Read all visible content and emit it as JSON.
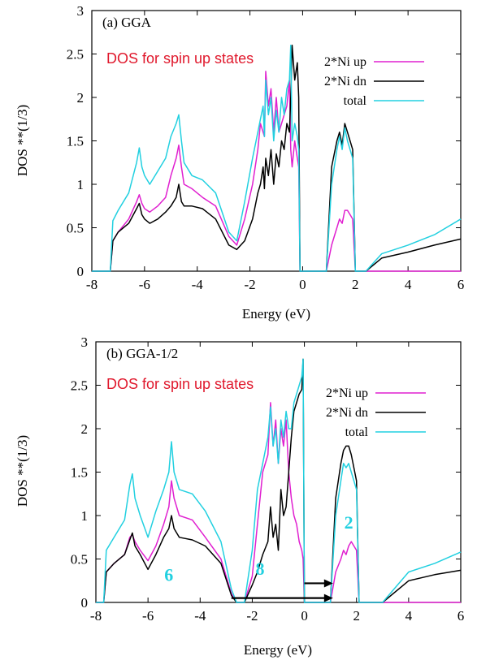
{
  "chart_data": [
    {
      "type": "line",
      "title": "(a) GGA",
      "annotation": "DOS for spin up states",
      "annotation_color": "#e0182c",
      "xlabel": "Energy (eV)",
      "ylabel": "DOS **(1/3)",
      "xlim": [
        -8,
        6
      ],
      "ylim": [
        0,
        3
      ],
      "xticks": [
        "-8",
        "-6",
        "-4",
        "-2",
        "0",
        "2",
        "4",
        "6"
      ],
      "yticks": [
        "0",
        "0.5",
        "1",
        "1.5",
        "2",
        "2.5",
        "3"
      ],
      "legend_position": "top-right",
      "grid": false,
      "series": [
        {
          "name": "2*Ni up",
          "color": "#e020d0",
          "x": [
            -8,
            -7.3,
            -7.2,
            -7,
            -6.6,
            -6.3,
            -6.2,
            -6.1,
            -6.0,
            -5.8,
            -5.5,
            -5.2,
            -5.0,
            -4.8,
            -4.7,
            -4.6,
            -4.5,
            -4.2,
            -3.8,
            -3.3,
            -2.8,
            -2.5,
            -2.2,
            -1.9,
            -1.7,
            -1.6,
            -1.5,
            -1.45,
            -1.4,
            -1.3,
            -1.2,
            -1.1,
            -1.0,
            -0.9,
            -0.8,
            -0.7,
            -0.6,
            -0.5,
            -0.45,
            -0.4,
            -0.3,
            -0.2,
            -0.15,
            -0.1,
            0.0,
            0.5,
            0.9,
            1.1,
            1.3,
            1.4,
            1.5,
            1.6,
            1.7,
            1.8,
            1.9,
            2.0,
            2.2,
            3.0,
            6.0
          ],
          "y": [
            0,
            0,
            0.35,
            0.45,
            0.6,
            0.8,
            0.88,
            0.78,
            0.72,
            0.68,
            0.75,
            0.85,
            1.1,
            1.3,
            1.45,
            1.2,
            1.0,
            0.95,
            0.85,
            0.75,
            0.4,
            0.3,
            0.6,
            1.0,
            1.4,
            1.7,
            1.6,
            1.55,
            2.3,
            1.9,
            2.1,
            1.6,
            2.0,
            1.6,
            1.7,
            1.8,
            1.9,
            2.2,
            1.4,
            1.2,
            1.5,
            1.3,
            1.2,
            0,
            0,
            0,
            0,
            0.3,
            0.5,
            0.6,
            0.55,
            0.7,
            0.7,
            0.65,
            0.6,
            0,
            0,
            0,
            0
          ]
        },
        {
          "name": "2*Ni dn",
          "color": "#000000",
          "x": [
            -8,
            -7.3,
            -7.2,
            -7,
            -6.6,
            -6.3,
            -6.2,
            -6.1,
            -6.0,
            -5.8,
            -5.5,
            -5.2,
            -5.0,
            -4.8,
            -4.7,
            -4.6,
            -4.5,
            -4.2,
            -3.8,
            -3.3,
            -2.8,
            -2.5,
            -2.2,
            -1.9,
            -1.7,
            -1.6,
            -1.5,
            -1.45,
            -1.4,
            -1.3,
            -1.2,
            -1.1,
            -1.0,
            -0.9,
            -0.8,
            -0.7,
            -0.6,
            -0.5,
            -0.45,
            -0.4,
            -0.3,
            -0.25,
            -0.2,
            -0.15,
            -0.1,
            0.0,
            0.5,
            0.9,
            1.1,
            1.3,
            1.4,
            1.5,
            1.6,
            1.7,
            1.8,
            1.9,
            2.0,
            2.2,
            2.4,
            3.0,
            4.0,
            5.0,
            6.0
          ],
          "y": [
            0,
            0,
            0.35,
            0.45,
            0.55,
            0.72,
            0.78,
            0.65,
            0.6,
            0.55,
            0.6,
            0.68,
            0.75,
            0.85,
            1.0,
            0.8,
            0.75,
            0.75,
            0.72,
            0.6,
            0.3,
            0.25,
            0.35,
            0.6,
            0.9,
            1.0,
            1.2,
            0.95,
            1.3,
            1.1,
            1.4,
            1.0,
            1.35,
            1.2,
            1.5,
            1.4,
            1.7,
            1.6,
            2.0,
            2.6,
            2.2,
            2.3,
            2.4,
            2.0,
            0,
            0,
            0,
            0,
            1.2,
            1.5,
            1.6,
            1.45,
            1.7,
            1.6,
            1.5,
            1.4,
            0,
            0,
            0,
            0.15,
            0.22,
            0.3,
            0.37
          ]
        },
        {
          "name": "total",
          "color": "#22d0e0",
          "x": [
            -8,
            -7.3,
            -7.2,
            -7,
            -6.6,
            -6.3,
            -6.2,
            -6.1,
            -6.0,
            -5.8,
            -5.5,
            -5.2,
            -5.0,
            -4.8,
            -4.7,
            -4.6,
            -4.5,
            -4.2,
            -3.8,
            -3.3,
            -2.8,
            -2.5,
            -2.2,
            -1.9,
            -1.7,
            -1.6,
            -1.5,
            -1.45,
            -1.4,
            -1.3,
            -1.2,
            -1.1,
            -1.0,
            -0.9,
            -0.8,
            -0.7,
            -0.6,
            -0.5,
            -0.45,
            -0.4,
            -0.3,
            -0.2,
            -0.15,
            -0.1,
            0.0,
            0.5,
            0.9,
            1.1,
            1.3,
            1.4,
            1.5,
            1.6,
            1.7,
            1.8,
            1.9,
            2.0,
            2.2,
            2.4,
            3.0,
            4.0,
            5.0,
            6.0
          ],
          "y": [
            0,
            0,
            0.58,
            0.7,
            0.9,
            1.25,
            1.42,
            1.2,
            1.1,
            1.0,
            1.15,
            1.3,
            1.55,
            1.7,
            1.8,
            1.5,
            1.25,
            1.1,
            1.05,
            0.9,
            0.45,
            0.35,
            0.8,
            1.3,
            1.6,
            1.75,
            1.9,
            1.55,
            2.2,
            1.8,
            2.0,
            1.5,
            1.85,
            1.6,
            2.0,
            1.8,
            2.1,
            2.2,
            2.6,
            1.5,
            1.7,
            1.55,
            1.4,
            0,
            0,
            0,
            0,
            1.0,
            1.4,
            1.55,
            1.4,
            1.65,
            1.5,
            1.4,
            1.3,
            0,
            0,
            0,
            0.2,
            0.3,
            0.42,
            0.6
          ]
        }
      ]
    },
    {
      "type": "line",
      "title": "(b) GGA-1/2",
      "annotation": "DOS for spin up states",
      "annotation_color": "#e0182c",
      "xlabel": "Energy (eV)",
      "ylabel": "DOS **(1/3)",
      "xlim": [
        -8,
        6
      ],
      "ylim": [
        0,
        3
      ],
      "xticks": [
        "-8",
        "-6",
        "-4",
        "-2",
        "0",
        "2",
        "4",
        "6"
      ],
      "yticks": [
        "0",
        "0.5",
        "1",
        "1.5",
        "2",
        "2.5",
        "3"
      ],
      "legend_position": "top-right",
      "grid": false,
      "markers": [
        {
          "label": "6",
          "x": -5.2,
          "y": 0.25,
          "color": "#22d0e0"
        },
        {
          "label": "8",
          "x": -1.7,
          "y": 0.32,
          "color": "#22d0e0"
        },
        {
          "label": "2",
          "x": 1.7,
          "y": 0.85,
          "color": "#22d0e0"
        }
      ],
      "arrows": [
        {
          "x_from": -2.8,
          "x_to": 1.1,
          "y": 0.05,
          "color": "#000000"
        },
        {
          "x_from": 0.0,
          "x_to": 1.1,
          "y": 0.22,
          "color": "#000000"
        }
      ],
      "series": [
        {
          "name": "2*Ni up",
          "color": "#e020d0",
          "x": [
            -8,
            -7.7,
            -7.6,
            -7.3,
            -6.9,
            -6.7,
            -6.6,
            -6.5,
            -6.3,
            -6.0,
            -5.7,
            -5.4,
            -5.2,
            -5.1,
            -5.0,
            -4.8,
            -4.3,
            -3.8,
            -3.2,
            -2.8,
            -2.6,
            -2.3,
            -2.0,
            -1.8,
            -1.6,
            -1.4,
            -1.3,
            -1.2,
            -1.1,
            -1.0,
            -0.9,
            -0.8,
            -0.7,
            -0.6,
            -0.5,
            -0.4,
            -0.3,
            -0.2,
            -0.1,
            -0.05,
            0.0,
            0.5,
            1.0,
            1.2,
            1.4,
            1.5,
            1.6,
            1.7,
            1.8,
            2.0,
            2.1,
            2.4,
            3.0,
            6.0
          ],
          "y": [
            0,
            0,
            0.35,
            0.45,
            0.55,
            0.75,
            0.78,
            0.7,
            0.6,
            0.48,
            0.65,
            0.9,
            1.1,
            1.4,
            1.2,
            1.0,
            0.95,
            0.75,
            0.5,
            0.1,
            0,
            0,
            0.3,
            0.9,
            1.5,
            1.7,
            2.3,
            1.8,
            2.1,
            1.6,
            2.0,
            1.8,
            2.1,
            1.5,
            1.2,
            1.0,
            0.9,
            0.7,
            0.6,
            0.5,
            0,
            0,
            0,
            0.35,
            0.5,
            0.6,
            0.55,
            0.65,
            0.7,
            0.6,
            0,
            0,
            0,
            0
          ]
        },
        {
          "name": "2*Ni dn",
          "color": "#000000",
          "x": [
            -8,
            -7.7,
            -7.6,
            -7.3,
            -6.9,
            -6.7,
            -6.6,
            -6.5,
            -6.3,
            -6.0,
            -5.7,
            -5.4,
            -5.2,
            -5.1,
            -5.0,
            -4.8,
            -4.3,
            -3.8,
            -3.2,
            -2.8,
            -2.6,
            -2.3,
            -2.0,
            -1.8,
            -1.6,
            -1.4,
            -1.3,
            -1.2,
            -1.1,
            -1.0,
            -0.9,
            -0.8,
            -0.7,
            -0.6,
            -0.5,
            -0.4,
            -0.3,
            -0.2,
            -0.1,
            -0.05,
            0.0,
            0.5,
            1.0,
            1.2,
            1.4,
            1.5,
            1.6,
            1.7,
            1.8,
            2.0,
            2.1,
            2.4,
            3.0,
            4.0,
            5.0,
            6.0
          ],
          "y": [
            0,
            0,
            0.35,
            0.45,
            0.55,
            0.72,
            0.8,
            0.65,
            0.55,
            0.38,
            0.55,
            0.75,
            0.85,
            1.0,
            0.85,
            0.75,
            0.72,
            0.65,
            0.45,
            0.08,
            0,
            0,
            0.2,
            0.35,
            0.55,
            0.7,
            1.1,
            0.75,
            0.9,
            0.6,
            1.3,
            1.0,
            1.1,
            1.5,
            1.9,
            2.2,
            2.3,
            2.4,
            2.45,
            2.8,
            0,
            0,
            0,
            1.2,
            1.6,
            1.75,
            1.8,
            1.8,
            1.7,
            1.4,
            0,
            0,
            0,
            0.25,
            0.32,
            0.37
          ]
        },
        {
          "name": "total",
          "color": "#22d0e0",
          "x": [
            -8,
            -7.7,
            -7.6,
            -7.3,
            -6.9,
            -6.7,
            -6.6,
            -6.5,
            -6.3,
            -6.0,
            -5.7,
            -5.4,
            -5.2,
            -5.1,
            -5.0,
            -4.8,
            -4.3,
            -3.8,
            -3.2,
            -2.8,
            -2.6,
            -2.3,
            -2.0,
            -1.8,
            -1.6,
            -1.4,
            -1.3,
            -1.2,
            -1.1,
            -1.0,
            -0.9,
            -0.8,
            -0.7,
            -0.6,
            -0.5,
            -0.4,
            -0.3,
            -0.2,
            -0.1,
            -0.05,
            0.0,
            0.5,
            1.0,
            1.2,
            1.4,
            1.5,
            1.6,
            1.7,
            1.8,
            2.0,
            2.1,
            2.4,
            3.0,
            4.0,
            5.0,
            6.0
          ],
          "y": [
            0,
            0,
            0.6,
            0.75,
            0.95,
            1.35,
            1.48,
            1.2,
            1.0,
            0.75,
            1.05,
            1.3,
            1.5,
            1.85,
            1.5,
            1.3,
            1.25,
            1.05,
            0.7,
            0.15,
            0,
            0,
            0.6,
            1.3,
            1.6,
            1.9,
            2.25,
            1.8,
            2.0,
            1.6,
            2.1,
            1.9,
            2.2,
            2.0,
            2.0,
            2.3,
            2.4,
            2.5,
            2.6,
            2.8,
            0,
            0,
            0,
            1.0,
            1.4,
            1.6,
            1.55,
            1.6,
            1.5,
            1.3,
            0,
            0,
            0,
            0.35,
            0.45,
            0.58
          ]
        }
      ]
    }
  ]
}
